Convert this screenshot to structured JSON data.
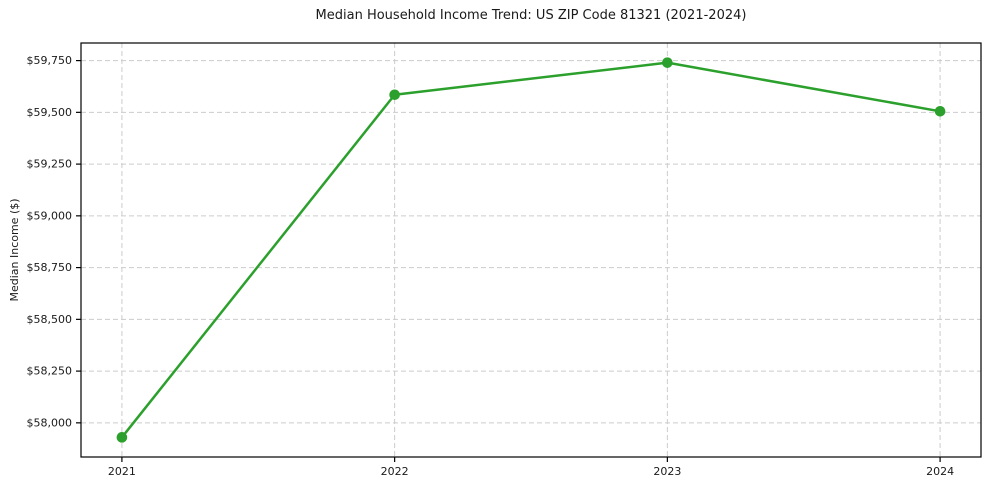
{
  "figure": {
    "background": "#ffffff"
  },
  "chart_data": {
    "type": "line",
    "title": "Median Household Income Trend: US ZIP Code 81321 (2021-2024)",
    "xlabel": "",
    "ylabel": "Median Income ($)",
    "x": [
      2021,
      2022,
      2023,
      2024
    ],
    "xtick_labels": [
      "2021",
      "2022",
      "2023",
      "2024"
    ],
    "series": [
      {
        "values": [
          57930,
          59585,
          59740,
          59505
        ],
        "color": "#2ca02c",
        "marker": "circle"
      }
    ],
    "ylim": [
      57835,
      59835
    ],
    "yticks": [
      58000,
      58250,
      58500,
      58750,
      59000,
      59250,
      59500,
      59750
    ],
    "ytick_prefix": "$",
    "legend": "none",
    "grid": "both-dashed",
    "grid_color": "#cccccc",
    "axis_color": "#000000",
    "text_color": "#1a1a1a"
  }
}
